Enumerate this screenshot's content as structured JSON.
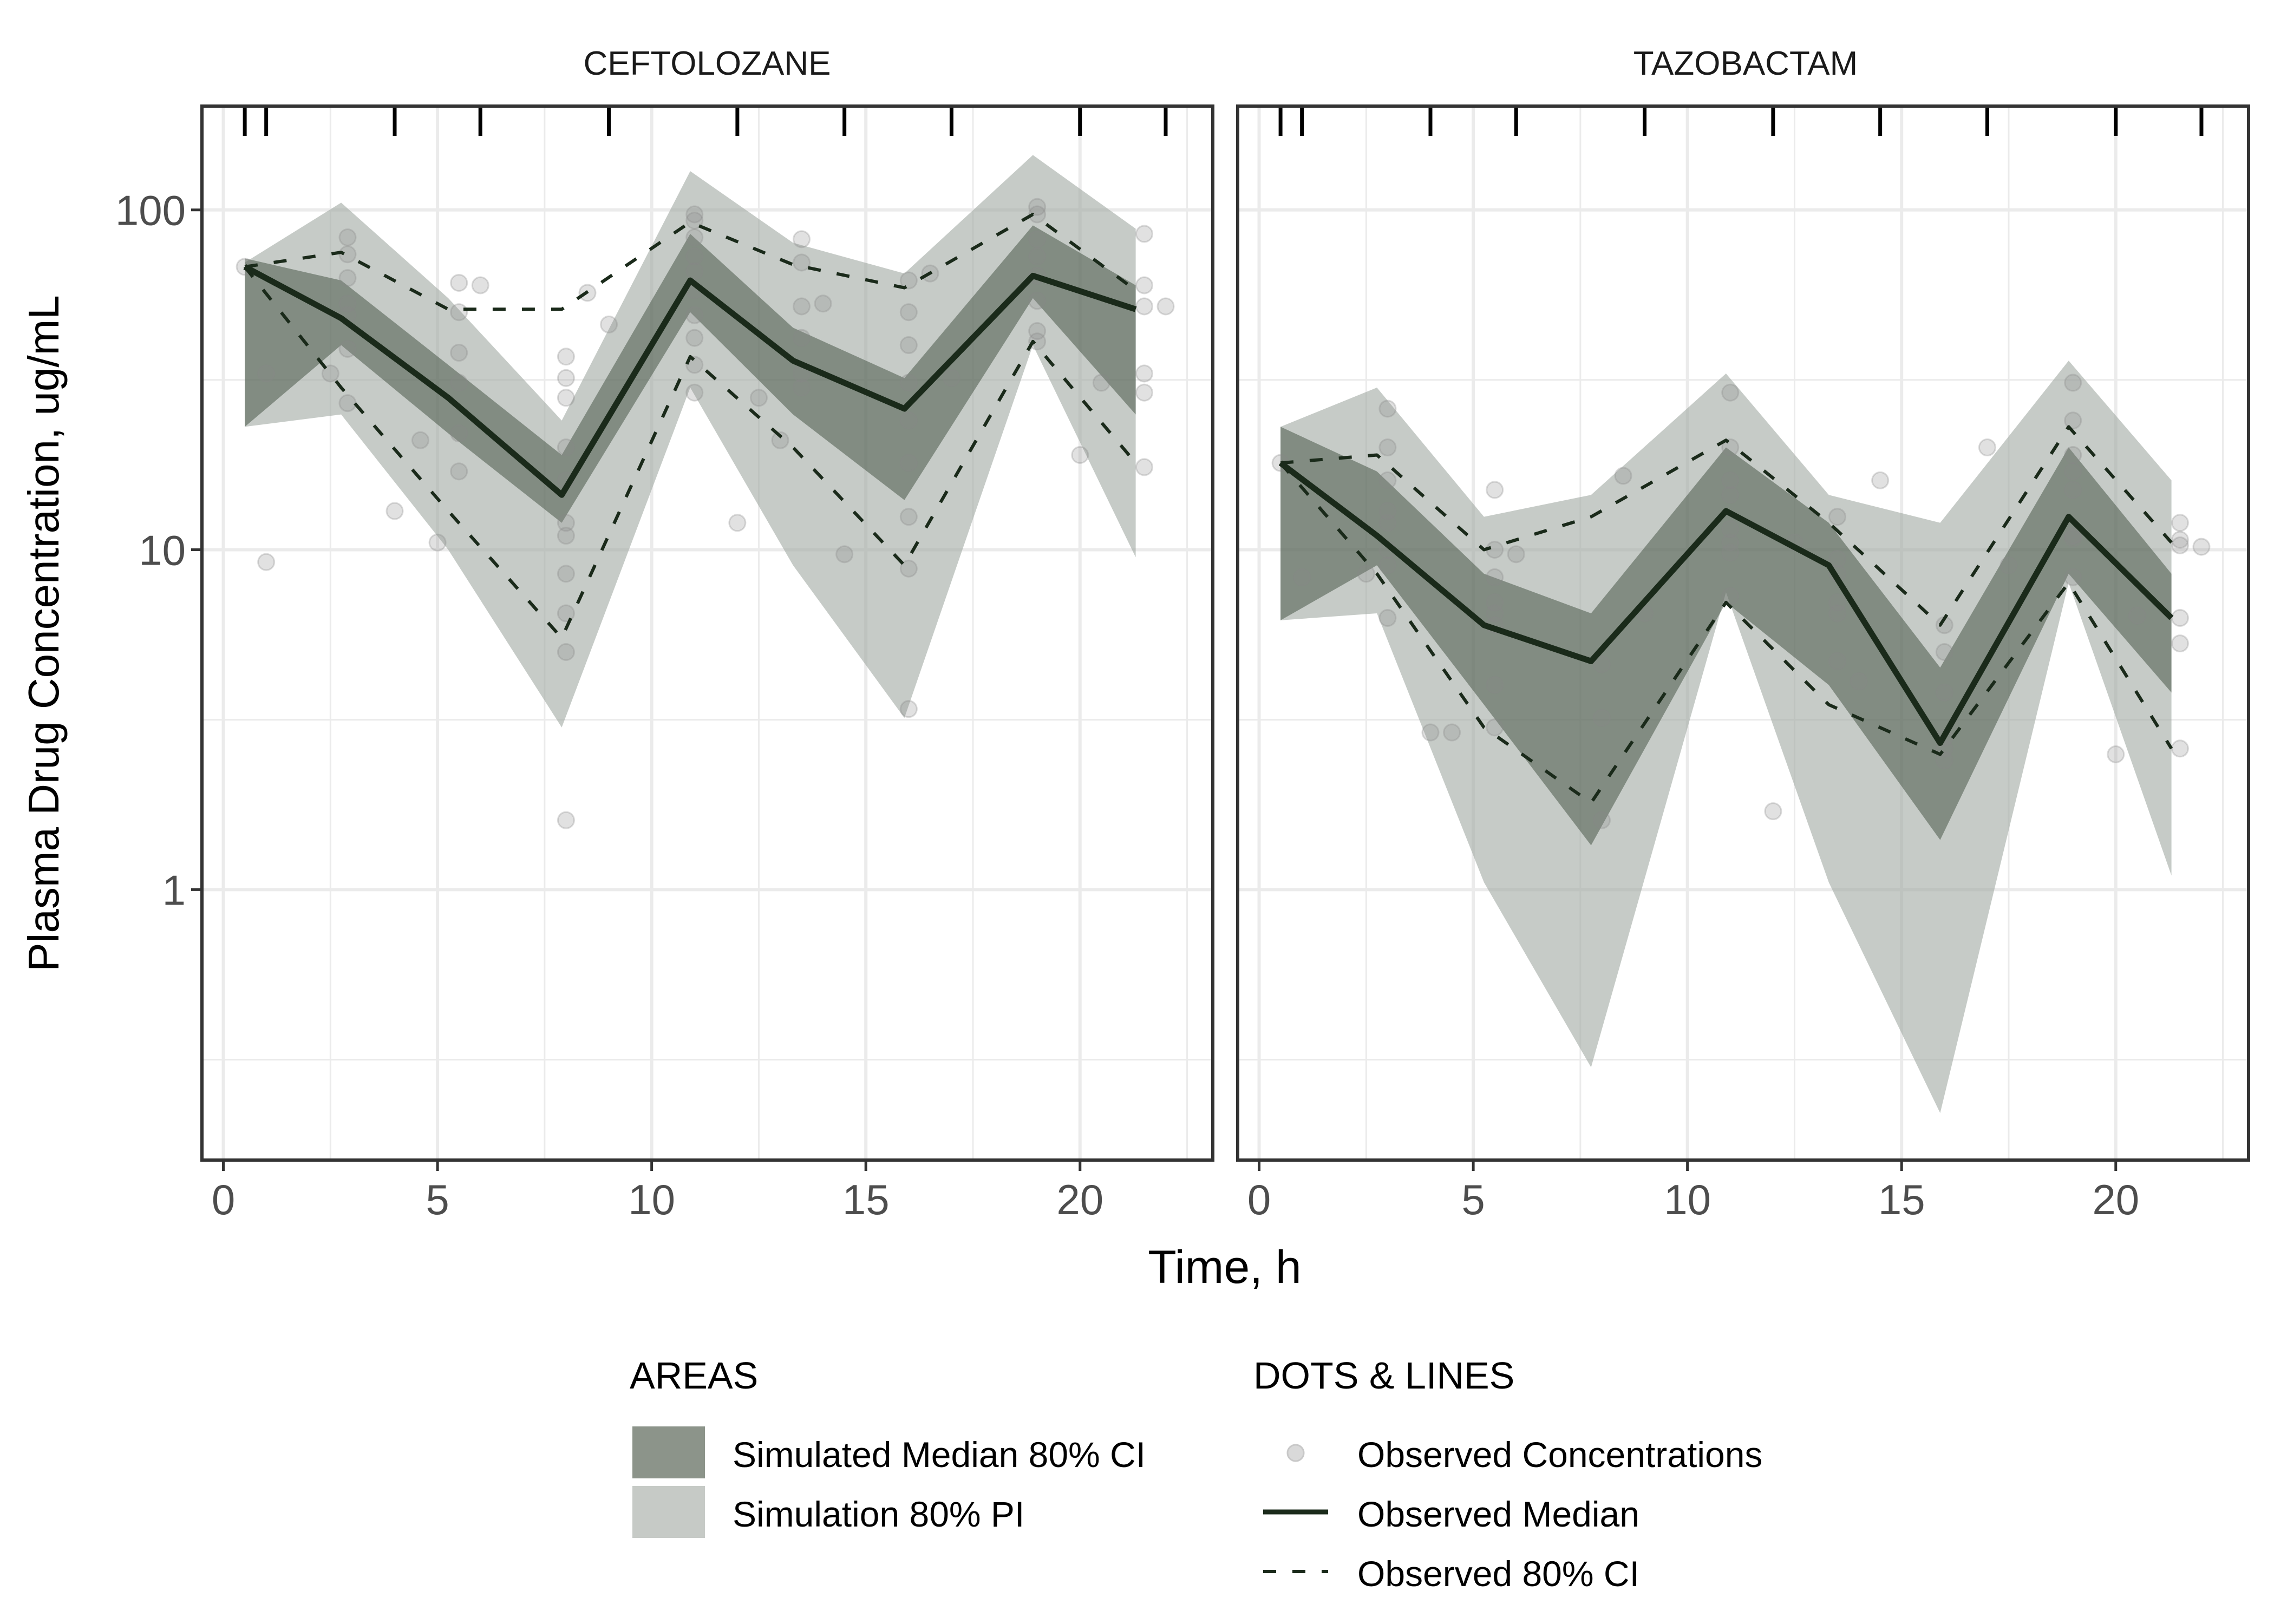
{
  "chart_data": [
    {
      "type": "line",
      "panel": "CEFTOLOZANE",
      "title": "CEFTOLOZANE",
      "xlabel": "Time, h",
      "ylabel": "Plasma Drug Concentration, ug/mL",
      "yscale": "log10",
      "xlim": [
        -0.5,
        23.1
      ],
      "ylim": [
        0.16,
        202
      ],
      "xticks": [
        0,
        5,
        10,
        15,
        20
      ],
      "yticks": [
        1,
        10,
        100
      ],
      "ytick_labels": [
        "1",
        "10",
        "100"
      ],
      "grid": true,
      "rug_times": [
        0.5,
        1,
        4,
        6,
        9,
        12,
        14.5,
        17,
        20,
        22
      ],
      "x": [
        0.5,
        2.75,
        5.25,
        7.9,
        10.9,
        13.3,
        15.9,
        18.9,
        21.3
      ],
      "series": [
        {
          "name": "Simulation 80% PI",
          "kind": "area",
          "lower": [
            23,
            25,
            10,
            3.0,
            30,
            9,
            3.2,
            40,
            9.5
          ],
          "upper": [
            70,
            105,
            55,
            24,
            130,
            80,
            65,
            145,
            88
          ]
        },
        {
          "name": "Simulated Median 80% CI",
          "kind": "area",
          "lower": [
            23,
            40,
            22,
            12,
            50,
            25,
            14,
            55,
            25
          ],
          "upper": [
            72,
            62,
            35,
            19,
            85,
            45,
            32,
            90,
            60
          ]
        },
        {
          "name": "Observed Median",
          "kind": "line",
          "values": [
            68,
            48,
            28,
            14.5,
            62,
            36,
            26,
            64,
            51
          ]
        },
        {
          "name": "Observed 80% CI upper",
          "kind": "dashed",
          "values": [
            68,
            75,
            51,
            51,
            92,
            69,
            59,
            97,
            58
          ]
        },
        {
          "name": "Observed 80% CI lower",
          "kind": "dashed",
          "values": [
            68,
            30,
            13,
            5.5,
            37,
            20,
            9,
            41,
            18
          ]
        }
      ],
      "points": [
        [
          0.5,
          68
        ],
        [
          1,
          33
        ],
        [
          1,
          9.2
        ],
        [
          2.5,
          33
        ],
        [
          2.9,
          83
        ],
        [
          2.9,
          74
        ],
        [
          2.9,
          63
        ],
        [
          2.9,
          53
        ],
        [
          2.9,
          49
        ],
        [
          2.9,
          39
        ],
        [
          2.9,
          27
        ],
        [
          4,
          13
        ],
        [
          4.6,
          21
        ],
        [
          5,
          10.5
        ],
        [
          5.5,
          61
        ],
        [
          5.5,
          50
        ],
        [
          5.5,
          38
        ],
        [
          5.5,
          31
        ],
        [
          5.5,
          22
        ],
        [
          5.5,
          17
        ],
        [
          6,
          60
        ],
        [
          8,
          37
        ],
        [
          8,
          32
        ],
        [
          8,
          28
        ],
        [
          8,
          20
        ],
        [
          8,
          16
        ],
        [
          8,
          12
        ],
        [
          8,
          11
        ],
        [
          8,
          8.5
        ],
        [
          8,
          6.5
        ],
        [
          8,
          5
        ],
        [
          8,
          1.6
        ],
        [
          8.5,
          57
        ],
        [
          9,
          46
        ],
        [
          11,
          97
        ],
        [
          11,
          93
        ],
        [
          11,
          83
        ],
        [
          11,
          73
        ],
        [
          11,
          66
        ],
        [
          11,
          58
        ],
        [
          11,
          49
        ],
        [
          11,
          42
        ],
        [
          11,
          35
        ],
        [
          11,
          29
        ],
        [
          12,
          12
        ],
        [
          12.5,
          28
        ],
        [
          13,
          21
        ],
        [
          13.5,
          82
        ],
        [
          13.5,
          70
        ],
        [
          13.5,
          52
        ],
        [
          13.5,
          42
        ],
        [
          13.5,
          33
        ],
        [
          13.5,
          30
        ],
        [
          14,
          53
        ],
        [
          14.5,
          9.7
        ],
        [
          16,
          62
        ],
        [
          16,
          50
        ],
        [
          16,
          40
        ],
        [
          16,
          31
        ],
        [
          16,
          24
        ],
        [
          16,
          18
        ],
        [
          16,
          12.5
        ],
        [
          16,
          8.8
        ],
        [
          16,
          3.4
        ],
        [
          16.5,
          65
        ],
        [
          17,
          32
        ],
        [
          19,
          102
        ],
        [
          19,
          97
        ],
        [
          19,
          82
        ],
        [
          19,
          73
        ],
        [
          19,
          64
        ],
        [
          19,
          54
        ],
        [
          19,
          44
        ],
        [
          19,
          41
        ],
        [
          20,
          19
        ],
        [
          20.5,
          31
        ],
        [
          21.5,
          85
        ],
        [
          21.5,
          60
        ],
        [
          21.5,
          52
        ],
        [
          21.5,
          33
        ],
        [
          21.5,
          29
        ],
        [
          21.5,
          17.5
        ],
        [
          22,
          52
        ]
      ]
    },
    {
      "type": "line",
      "panel": "TAZOBACTAM",
      "title": "TAZOBACTAM",
      "xlabel": "Time, h",
      "ylabel": "Plasma Drug Concentration, ug/mL",
      "yscale": "log10",
      "xlim": [
        -0.5,
        23.1
      ],
      "ylim": [
        0.16,
        202
      ],
      "xticks": [
        0,
        5,
        10,
        15,
        20
      ],
      "yticks": [
        1,
        10,
        100
      ],
      "grid": true,
      "rug_times": [
        0.5,
        1,
        4,
        6,
        9,
        12,
        14.5,
        17,
        20,
        22
      ],
      "x": [
        0.5,
        2.75,
        5.25,
        7.75,
        10.9,
        13.3,
        15.9,
        18.9,
        21.3
      ],
      "series": [
        {
          "name": "Simulation 80% PI",
          "kind": "area",
          "lower": [
            6.2,
            6.5,
            1.05,
            0.3,
            7.5,
            1.05,
            0.22,
            8,
            1.1
          ],
          "upper": [
            23,
            30,
            12.5,
            14.5,
            33,
            14.5,
            12,
            36,
            16
          ]
        },
        {
          "name": "Simulated Median 80% CI",
          "kind": "area",
          "lower": [
            6.2,
            9,
            3.5,
            1.35,
            7,
            4,
            1.4,
            8.5,
            3.8
          ],
          "upper": [
            23,
            17,
            8.5,
            6.5,
            20,
            12,
            4.5,
            20,
            8.5
          ]
        },
        {
          "name": "Observed Median",
          "kind": "line",
          "values": [
            18,
            11,
            6,
            4.7,
            13,
            9,
            2.7,
            12.5,
            6.3
          ]
        },
        {
          "name": "Observed 80% CI upper",
          "kind": "dashed",
          "values": [
            18,
            19,
            10,
            12.5,
            21,
            12,
            6,
            23,
            10.5
          ]
        },
        {
          "name": "Observed 80% CI lower",
          "kind": "dashed",
          "values": [
            18,
            8.5,
            3,
            1.8,
            7,
            3.5,
            2.5,
            8,
            2.6
          ]
        }
      ],
      "points": [
        [
          0.5,
          18
        ],
        [
          1,
          8.3
        ],
        [
          2.5,
          8.5
        ],
        [
          3,
          26
        ],
        [
          3,
          20
        ],
        [
          3,
          16
        ],
        [
          3,
          13
        ],
        [
          3,
          12
        ],
        [
          3,
          10
        ],
        [
          3,
          9
        ],
        [
          3,
          6.3
        ],
        [
          4,
          2.9
        ],
        [
          4.5,
          2.9
        ],
        [
          5.5,
          15
        ],
        [
          5.5,
          10
        ],
        [
          5.5,
          8.3
        ],
        [
          5.5,
          7
        ],
        [
          5.5,
          6.5
        ],
        [
          5.5,
          6
        ],
        [
          5.5,
          4
        ],
        [
          5.5,
          3
        ],
        [
          6,
          9.7
        ],
        [
          8,
          4.6
        ],
        [
          8,
          3.2
        ],
        [
          8,
          1.6
        ],
        [
          8.5,
          16.5
        ],
        [
          9,
          6.5
        ],
        [
          11,
          29
        ],
        [
          11,
          20
        ],
        [
          11,
          16
        ],
        [
          11,
          14.5
        ],
        [
          11,
          11.5
        ],
        [
          11,
          10.5
        ],
        [
          11,
          9.8
        ],
        [
          11,
          7.3
        ],
        [
          12,
          1.7
        ],
        [
          12.5,
          10.5
        ],
        [
          13.5,
          12.5
        ],
        [
          13.5,
          9.4
        ],
        [
          13.5,
          8.5
        ],
        [
          13.5,
          7
        ],
        [
          13.5,
          6.5
        ],
        [
          13.5,
          4.7
        ],
        [
          14,
          4.1
        ],
        [
          14.5,
          16
        ],
        [
          16,
          6
        ],
        [
          16,
          5
        ],
        [
          16,
          3.8
        ],
        [
          16,
          2.8
        ],
        [
          16,
          2.6
        ],
        [
          16,
          2.4
        ],
        [
          17,
          20
        ],
        [
          17.5,
          9
        ],
        [
          19,
          31
        ],
        [
          19,
          24
        ],
        [
          19,
          19
        ],
        [
          19,
          17
        ],
        [
          19,
          15
        ],
        [
          19,
          11
        ],
        [
          19,
          10.8
        ],
        [
          19,
          8.3
        ],
        [
          20,
          2.5
        ],
        [
          20.5,
          6.4
        ],
        [
          21.5,
          12
        ],
        [
          21.5,
          10.7
        ],
        [
          21.5,
          10.3
        ],
        [
          21.5,
          6.3
        ],
        [
          21.5,
          5.3
        ],
        [
          21.5,
          2.6
        ],
        [
          22,
          10.2
        ]
      ]
    }
  ],
  "strip_labels": [
    "CEFTOLOZANE",
    "TAZOBACTAM"
  ],
  "axes": {
    "xlabel": "Time, h",
    "ylabel": "Plasma Drug Concentration, ug/mL",
    "xtick_labels": [
      "0",
      "5",
      "10",
      "15",
      "20"
    ],
    "ytick_labels": [
      "1",
      "10",
      "100"
    ]
  },
  "legend": {
    "placement": "bottom",
    "areas_title": "AREAS",
    "areas": [
      {
        "label": "Simulated Median 80% CI",
        "color": "#8c948a"
      },
      {
        "label": "Simulation 80% PI",
        "color": "#c6cac6"
      }
    ],
    "lines_title": "DOTS & LINES",
    "lines": [
      {
        "label": "Observed Concentrations",
        "kind": "dot"
      },
      {
        "label": "Observed Median",
        "kind": "solid"
      },
      {
        "label": "Observed 80% CI",
        "kind": "dashed"
      }
    ]
  },
  "colors": {
    "pi_fill": "#a0a8a2",
    "ci_fill": "#3e4d3e",
    "line": "#1a2a1a",
    "point": "#888888",
    "grid": "#ebebeb",
    "panel_border": "#333333",
    "tick_text": "#4d4d4d"
  }
}
